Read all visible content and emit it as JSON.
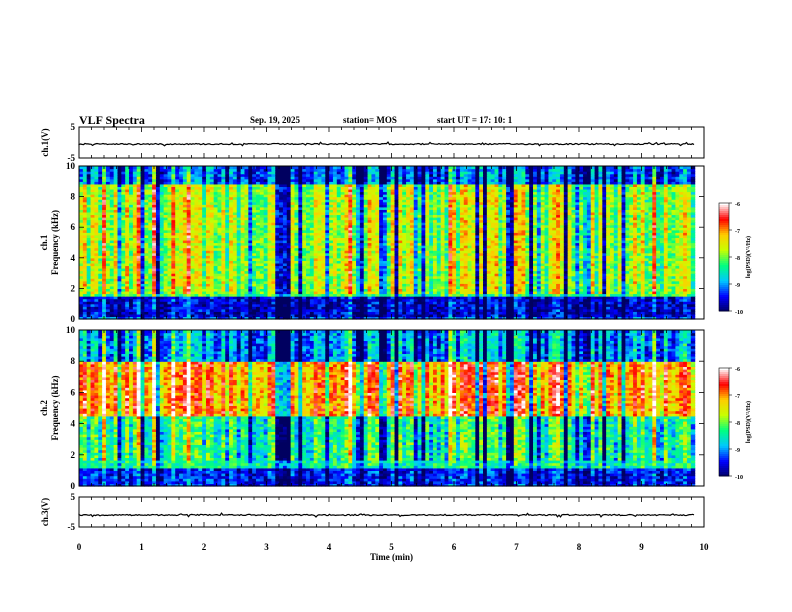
{
  "header": {
    "title": "VLF Spectra",
    "date": "Sep. 19, 2025",
    "station": "station= MOS",
    "start": "start  UT  =   17: 10: 1"
  },
  "chart_data": [
    {
      "type": "line",
      "name": "ch1-voltage",
      "ylabel": "ch.1(V)",
      "ylim": [
        -5,
        5
      ],
      "y_ticks": [
        "5",
        "-5"
      ],
      "baseline_value": -0.5
    },
    {
      "type": "heatmap",
      "name": "ch1-spectrogram",
      "ylabel": "Frequency (kHz)",
      "ylabel2": "ch.1",
      "xlim": [
        0,
        10
      ],
      "ylim": [
        0,
        10
      ],
      "y_ticks": [
        "0",
        "2",
        "4",
        "6",
        "8",
        "10"
      ],
      "colorbar": {
        "label": "log(PSD)(V²/Hz)",
        "ticks": [
          "-6",
          "-7",
          "-8",
          "-9",
          "-10"
        ],
        "range": [
          -10,
          -6
        ],
        "colors": [
          "#000060",
          "#0000ff",
          "#00c8ff",
          "#00ff80",
          "#c8ff00",
          "#ffcc00",
          "#ff0000",
          "#ffffff"
        ]
      },
      "bands_khz": [
        {
          "from": 0.2,
          "to": 1.5,
          "level": -9.6
        },
        {
          "from": 1.5,
          "to": 1.7,
          "level": -8.2
        },
        {
          "from": 1.7,
          "to": 8.8,
          "level": -7.8
        },
        {
          "from": 8.8,
          "to": 10.0,
          "level": -9.2
        }
      ]
    },
    {
      "type": "heatmap",
      "name": "ch2-spectrogram",
      "ylabel": "Frequency (kHz)",
      "ylabel2": "ch.2",
      "xlim": [
        0,
        10
      ],
      "ylim": [
        0,
        10
      ],
      "y_ticks": [
        "0",
        "2",
        "4",
        "6",
        "8",
        "10"
      ],
      "colorbar": {
        "label": "log(PSD)(V²/Hz)",
        "ticks": [
          "-6",
          "-7",
          "-8",
          "-9",
          "-10"
        ],
        "range": [
          -10,
          -6
        ],
        "colors": [
          "#000060",
          "#0000ff",
          "#00c8ff",
          "#00ff80",
          "#c8ff00",
          "#ffcc00",
          "#ff0000",
          "#ffffff"
        ]
      },
      "bands_khz": [
        {
          "from": 0.0,
          "to": 1.2,
          "level": -9.4
        },
        {
          "from": 1.2,
          "to": 4.5,
          "level": -8.4
        },
        {
          "from": 4.5,
          "to": 8.0,
          "level": -7.0
        },
        {
          "from": 8.0,
          "to": 10.0,
          "level": -9.0
        }
      ]
    },
    {
      "type": "line",
      "name": "ch3-voltage",
      "ylabel": "ch.3(V)",
      "ylim": [
        -5,
        5
      ],
      "y_ticks": [
        "5",
        "-5"
      ],
      "baseline_value": -1.0
    }
  ],
  "x_axis": {
    "label": "Time (min)",
    "xlim": [
      0,
      10
    ],
    "ticks": [
      "0",
      "1",
      "2",
      "3",
      "4",
      "5",
      "6",
      "7",
      "8",
      "9",
      "10"
    ],
    "data_end_min": 9.85
  }
}
